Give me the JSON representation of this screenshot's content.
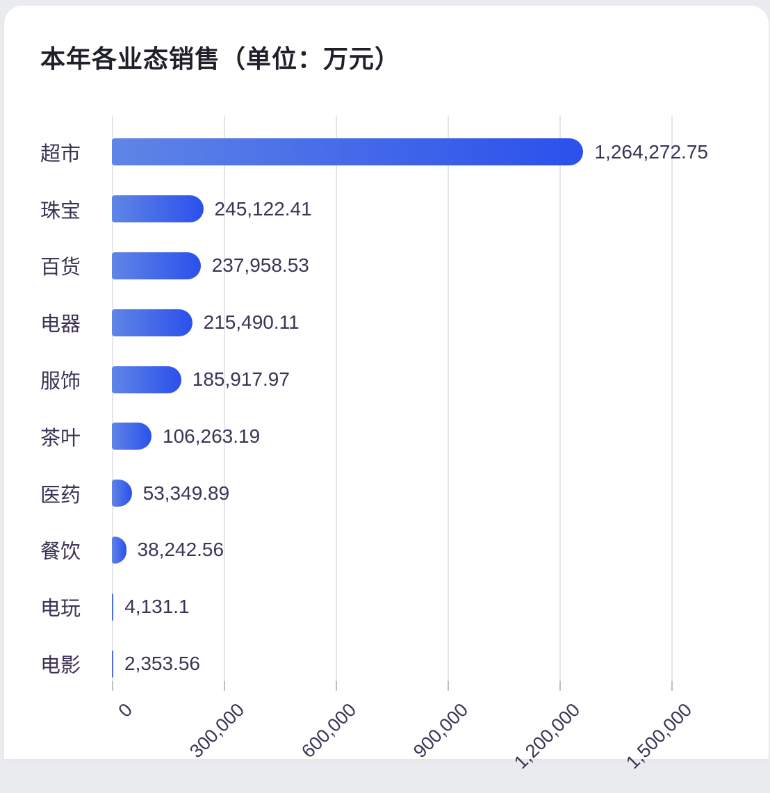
{
  "chart_data": {
    "type": "bar",
    "orientation": "horizontal",
    "title": "本年各业态销售（单位：万元）",
    "unit": "万元",
    "categories": [
      "超市",
      "珠宝",
      "百货",
      "电器",
      "服饰",
      "茶叶",
      "医药",
      "餐饮",
      "电玩",
      "电影"
    ],
    "values": [
      1264272.75,
      245122.41,
      237958.53,
      215490.11,
      185917.97,
      106263.19,
      53349.89,
      38242.56,
      4131.1,
      2353.56
    ],
    "value_labels": [
      "1,264,272.75",
      "245,122.41",
      "237,958.53",
      "215,490.11",
      "185,917.97",
      "106,263.19",
      "53,349.89",
      "38,242.56",
      "4,131.1",
      "2,353.56"
    ],
    "x_ticks": [
      0,
      300000,
      600000,
      900000,
      1200000,
      1500000
    ],
    "x_tick_labels": [
      "0",
      "300,000",
      "600,000",
      "900,000",
      "1,200,000",
      "1,500,000"
    ],
    "xlim": [
      0,
      1500000
    ],
    "grid": true,
    "legend": false,
    "colors": {
      "bar_gradient_start": "#5f85e6",
      "bar_gradient_end": "#2b50ec",
      "text": "#3d3355",
      "title": "#1f2029",
      "grid_line": "#e4e6ec",
      "tick_mark": "#bcbfc9",
      "card_bg": "#ffffff",
      "page_bg": "#e9ebee"
    }
  }
}
